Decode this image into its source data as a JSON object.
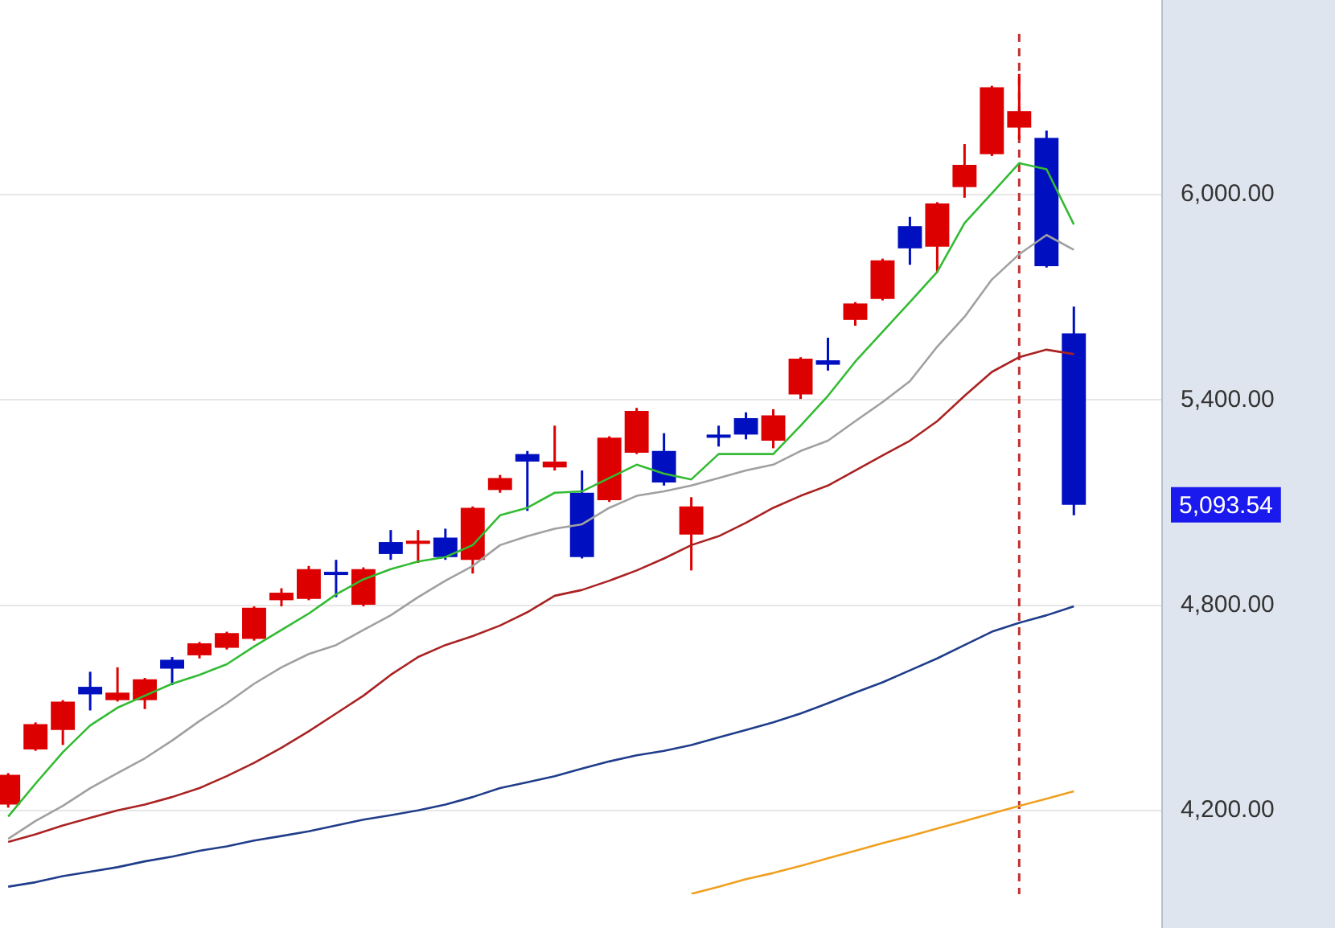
{
  "chart_data": {
    "type": "candlestick",
    "categories": [
      null,
      null,
      null,
      null,
      null,
      null,
      null,
      null,
      null,
      null,
      null,
      null,
      null,
      null,
      null,
      null,
      null,
      null,
      null,
      null,
      null,
      null,
      null,
      null,
      null,
      null,
      null,
      null,
      null,
      null,
      null,
      null,
      null,
      null,
      null,
      null,
      null,
      null,
      null,
      null
    ],
    "ohlc": [
      [
        4218,
        4310,
        4209,
        4305
      ],
      [
        4379,
        4458,
        4375,
        4453
      ],
      [
        4436,
        4523,
        4392,
        4519
      ],
      [
        4562,
        4606,
        4493,
        4540
      ],
      [
        4523,
        4619,
        4519,
        4545
      ],
      [
        4523,
        4588,
        4497,
        4584
      ],
      [
        4641,
        4649,
        4567,
        4615
      ],
      [
        4654,
        4693,
        4645,
        4689
      ],
      [
        4676,
        4723,
        4671,
        4719
      ],
      [
        4702,
        4797,
        4697,
        4793
      ],
      [
        4815,
        4850,
        4797,
        4837
      ],
      [
        4819,
        4915,
        4815,
        4906
      ],
      [
        4898,
        4933,
        4824,
        4889
      ],
      [
        4802,
        4911,
        4797,
        4906
      ],
      [
        4985,
        5020,
        4933,
        4950
      ],
      [
        4981,
        5020,
        4924,
        4989
      ],
      [
        4998,
        5024,
        4933,
        4941
      ],
      [
        4933,
        5089,
        4893,
        5085
      ],
      [
        5137,
        5181,
        5129,
        5172
      ],
      [
        5242,
        5251,
        5076,
        5220
      ],
      [
        5203,
        5325,
        5194,
        5220
      ],
      [
        5129,
        5194,
        4937,
        4941
      ],
      [
        5107,
        5294,
        5102,
        5290
      ],
      [
        5246,
        5377,
        5242,
        5368
      ],
      [
        5251,
        5303,
        5150,
        5159
      ],
      [
        5007,
        5116,
        4902,
        5089
      ],
      [
        5299,
        5325,
        5264,
        5290
      ],
      [
        5347,
        5364,
        5285,
        5299
      ],
      [
        5281,
        5373,
        5259,
        5355
      ],
      [
        5416,
        5525,
        5403,
        5521
      ],
      [
        5516,
        5582,
        5486,
        5503
      ],
      [
        5634,
        5686,
        5617,
        5682
      ],
      [
        5695,
        5813,
        5691,
        5808
      ],
      [
        5908,
        5935,
        5795,
        5843
      ],
      [
        5848,
        5978,
        5773,
        5974
      ],
      [
        6022,
        6148,
        5991,
        6087
      ],
      [
        6118,
        6318,
        6113,
        6314
      ],
      [
        6196,
        6353,
        6161,
        6244
      ],
      [
        6166,
        6187,
        5787,
        5791
      ],
      [
        5595,
        5673,
        5063,
        5093.54
      ]
    ],
    "colors": [
      "#dd0000",
      "#dd0000",
      "#dd0000",
      "#0010c0",
      "#dd0000",
      "#dd0000",
      "#0010c0",
      "#dd0000",
      "#dd0000",
      "#dd0000",
      "#dd0000",
      "#dd0000",
      "#0010c0",
      "#dd0000",
      "#0010c0",
      "#dd0000",
      "#0010c0",
      "#dd0000",
      "#dd0000",
      "#0010c0",
      "#dd0000",
      "#0010c0",
      "#dd0000",
      "#dd0000",
      "#0010c0",
      "#dd0000",
      "#0010c0",
      "#0010c0",
      "#dd0000",
      "#dd0000",
      "#0010c0",
      "#dd0000",
      "#dd0000",
      "#0010c0",
      "#dd0000",
      "#dd0000",
      "#dd0000",
      "#dd0000",
      "#0010c0",
      "#0010c0"
    ],
    "series": [
      {
        "type": "line",
        "color": "#33bb33",
        "values": [
          4183,
          4279,
          4371,
          4449,
          4501,
          4536,
          4571,
          4597,
          4628,
          4680,
          4728,
          4776,
          4832,
          4876,
          4906,
          4928,
          4941,
          4976,
          5063,
          5085,
          5129,
          5133,
          5172,
          5211,
          5185,
          5168,
          5242,
          5242,
          5242,
          5325,
          5412,
          5512,
          5599,
          5686,
          5774,
          5917,
          6004,
          6092,
          6074,
          5913
        ]
      },
      {
        "type": "line",
        "color": "#a0a0a0",
        "values": [
          4118,
          4170,
          4214,
          4266,
          4310,
          4353,
          4405,
          4462,
          4514,
          4571,
          4619,
          4658,
          4684,
          4728,
          4771,
          4824,
          4872,
          4915,
          4976,
          5002,
          5024,
          5037,
          5085,
          5120,
          5133,
          5150,
          5172,
          5194,
          5211,
          5251,
          5281,
          5338,
          5394,
          5455,
          5556,
          5643,
          5752,
          5826,
          5882,
          5839
        ]
      },
      {
        "type": "line",
        "color": "#aa2222",
        "values": [
          4109,
          4131,
          4157,
          4179,
          4201,
          4218,
          4240,
          4266,
          4301,
          4340,
          4384,
          4432,
          4484,
          4536,
          4597,
          4649,
          4684,
          4710,
          4741,
          4780,
          4828,
          4845,
          4872,
          4902,
          4937,
          4976,
          5002,
          5041,
          5085,
          5120,
          5150,
          5194,
          5238,
          5281,
          5338,
          5412,
          5482,
          5525,
          5547,
          5534
        ]
      },
      {
        "type": "line",
        "color": "#1f3d8a",
        "values": [
          3978,
          3991,
          4009,
          4022,
          4035,
          4052,
          4066,
          4083,
          4096,
          4113,
          4126,
          4140,
          4157,
          4174,
          4187,
          4201,
          4218,
          4240,
          4266,
          4283,
          4301,
          4323,
          4344,
          4362,
          4375,
          4392,
          4414,
          4436,
          4458,
          4484,
          4514,
          4545,
          4575,
          4610,
          4645,
          4684,
          4723,
          4749,
          4771,
          4797
        ]
      },
      {
        "type": "line",
        "color": "#f0a020",
        "values": [
          null,
          null,
          null,
          null,
          null,
          null,
          null,
          null,
          null,
          null,
          null,
          null,
          null,
          null,
          null,
          null,
          null,
          null,
          null,
          null,
          null,
          null,
          null,
          null,
          null,
          3957,
          3978,
          4000,
          4018,
          4039,
          4061,
          4083,
          4105,
          4126,
          4148,
          4170,
          4192,
          4214,
          4235,
          4257
        ]
      }
    ],
    "ylim": [
      3956,
      6470
    ],
    "yticks": [
      {
        "value": 4200,
        "label": "4,200.00"
      },
      {
        "value": 4800,
        "label": "4,800.00"
      },
      {
        "value": 5400,
        "label": "5,400.00"
      },
      {
        "value": 6000,
        "label": "6,000.00"
      }
    ],
    "grid": "y",
    "tick_labels": "y",
    "annotations": [
      "5,093.54"
    ]
  }
}
